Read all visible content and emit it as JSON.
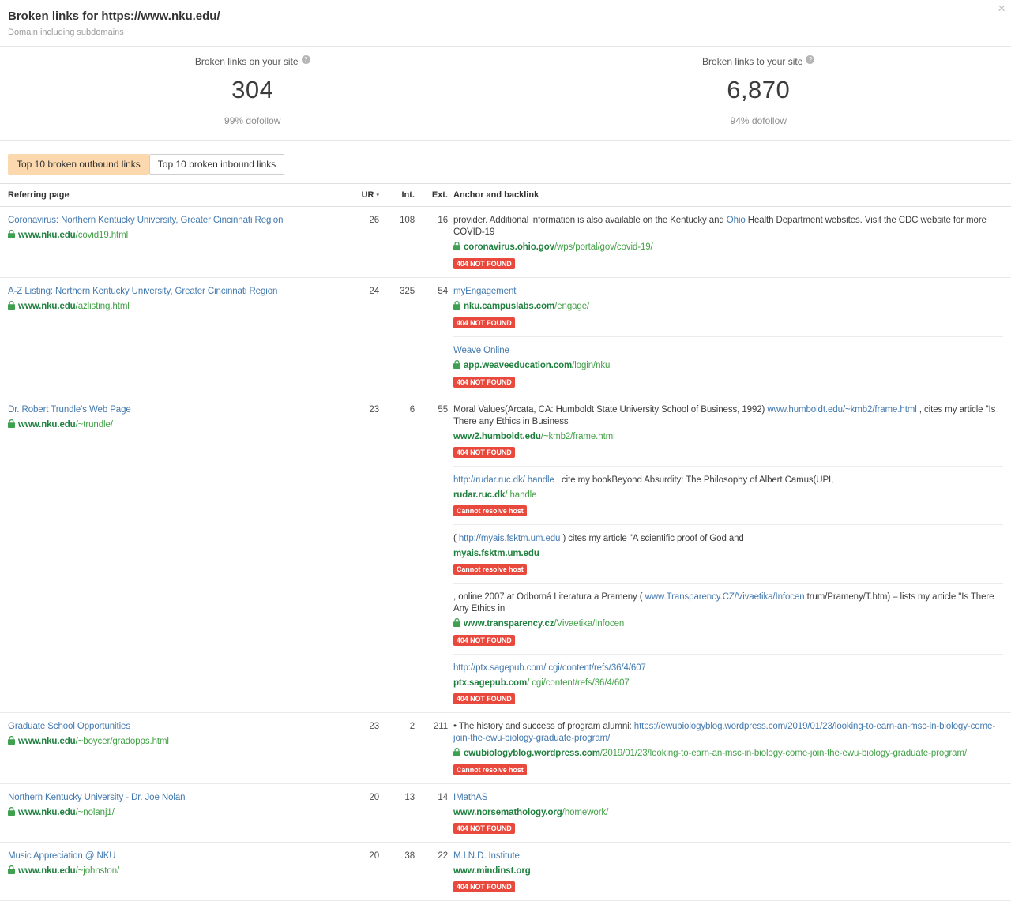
{
  "colors": {
    "link_blue": "#4379ae",
    "domain_green": "#20813f",
    "path_green": "#43a047",
    "badge_red": "#e8493c",
    "active_tab_bg": "#fbd8ad"
  },
  "header": {
    "title": "Broken links for https://www.nku.edu/",
    "subtitle": "Domain including subdomains",
    "close_icon": "×",
    "help_icon": "?"
  },
  "stats": [
    {
      "label": "Broken links on your site",
      "value": "304",
      "sub": "99% dofollow"
    },
    {
      "label": "Broken links to your site",
      "value": "6,870",
      "sub": "94% dofollow"
    }
  ],
  "tabs": [
    {
      "label": "Top 10 broken outbound links",
      "active": true
    },
    {
      "label": "Top 10 broken inbound links",
      "active": false
    }
  ],
  "table": {
    "sort_icon": "▾",
    "columns": {
      "referring": "Referring page",
      "ur": "UR",
      "int": "Int.",
      "ext": "Ext.",
      "anchor": "Anchor and backlink"
    },
    "rows": [
      {
        "title": "Coronavirus: Northern Kentucky University, Greater Cincinnati Region",
        "lock": true,
        "domain": "www.nku.edu",
        "path": "/covid19.html",
        "ur": "26",
        "int": "108",
        "ext": "16",
        "backlinks": [
          {
            "anchor": [
              {
                "t": "provider. Additional information is also available on the Kentucky and "
              },
              {
                "t": "Ohio",
                "link": true
              },
              {
                "t": " Health Department websites. Visit the CDC website for more COVID-19"
              }
            ],
            "lock": true,
            "domain": "coronavirus.ohio.gov",
            "path": "/wps/portal/gov/covid-19/",
            "badge": "404 NOT FOUND"
          }
        ]
      },
      {
        "title": "A-Z Listing: Northern Kentucky University, Greater Cincinnati Region",
        "lock": true,
        "domain": "www.nku.edu",
        "path": "/azlisting.html",
        "ur": "24",
        "int": "325",
        "ext": "54",
        "backlinks": [
          {
            "anchor": [
              {
                "t": "myEngagement",
                "link": true
              }
            ],
            "lock": true,
            "domain": "nku.campuslabs.com",
            "path": "/engage/",
            "badge": "404 NOT FOUND"
          },
          {
            "anchor": [
              {
                "t": "Weave Online",
                "link": true
              }
            ],
            "lock": true,
            "domain": "app.weaveeducation.com",
            "path": "/login/nku",
            "badge": "404 NOT FOUND"
          }
        ]
      },
      {
        "title": "Dr. Robert Trundle's Web Page",
        "lock": true,
        "domain": "www.nku.edu",
        "path": "/~trundle/",
        "ur": "23",
        "int": "6",
        "ext": "55",
        "backlinks": [
          {
            "anchor": [
              {
                "t": "Moral Values(Arcata, CA: Humboldt State University School of Business, 1992) "
              },
              {
                "t": "www.humboldt.edu/~kmb2/frame.html",
                "link": true
              },
              {
                "t": " , cites my article \"Is There any Ethics in Business"
              }
            ],
            "lock": false,
            "domain": "www2.humboldt.edu",
            "path": "/~kmb2/frame.html",
            "badge": "404 NOT FOUND"
          },
          {
            "anchor": [
              {
                "t": "http://rudar.ruc.dk/ handle",
                "link": true
              },
              {
                "t": " , cite my bookBeyond Absurdity: The Philosophy of Albert Camus(UPI,"
              }
            ],
            "lock": false,
            "domain": "rudar.ruc.dk",
            "path": "/ handle",
            "badge": "Cannot resolve host"
          },
          {
            "anchor": [
              {
                "t": "( "
              },
              {
                "t": "http://myais.fsktm.um.edu",
                "link": true
              },
              {
                "t": " ) cites my article \"A scientific proof of God and"
              }
            ],
            "lock": false,
            "domain": "myais.fsktm.um.edu",
            "path": "",
            "badge": "Cannot resolve host"
          },
          {
            "anchor": [
              {
                "t": ", online 2007 at Odborná Literatura a Prameny ( "
              },
              {
                "t": "www.Transparency.CZ/Vivaetika/Infocen",
                "link": true
              },
              {
                "t": " trum/Prameny/T.htm) – lists my article \"Is There Any Ethics in"
              }
            ],
            "lock": true,
            "domain": "www.transparency.cz",
            "path": "/Vivaetika/Infocen",
            "badge": "404 NOT FOUND"
          },
          {
            "anchor": [
              {
                "t": "http://ptx.sagepub.com/ cgi/content/refs/36/4/607",
                "link": true
              }
            ],
            "lock": false,
            "domain": "ptx.sagepub.com",
            "path": "/ cgi/content/refs/36/4/607",
            "badge": "404 NOT FOUND"
          }
        ]
      },
      {
        "title": "Graduate School Opportunities",
        "lock": true,
        "domain": "www.nku.edu",
        "path": "/~boycer/gradopps.html",
        "ur": "23",
        "int": "2",
        "ext": "211",
        "backlinks": [
          {
            "anchor": [
              {
                "t": "• The history and success of program alumni: "
              },
              {
                "t": "https://ewubiologyblog.wordpress.com/2019/01/23/looking-to-earn-an-msc-in-biology-come-join-the-ewu-biology-graduate-program/",
                "link": true
              }
            ],
            "lock": true,
            "domain": "ewubiologyblog.wordpress.com",
            "path": "/2019/01/23/looking-to-earn-an-msc-in-biology-come-join-the-ewu-biology-graduate-program/",
            "badge": "Cannot resolve host"
          }
        ]
      },
      {
        "title": "Northern Kentucky University - Dr. Joe Nolan",
        "lock": true,
        "domain": "www.nku.edu",
        "path": "/~nolanj1/",
        "ur": "20",
        "int": "13",
        "ext": "14",
        "backlinks": [
          {
            "anchor": [
              {
                "t": "IMathAS",
                "link": true
              }
            ],
            "lock": false,
            "domain": "www.norsemathology.org",
            "path": "/homework/",
            "badge": "404 NOT FOUND"
          }
        ]
      },
      {
        "title": "Music Appreciation @ NKU",
        "lock": true,
        "domain": "www.nku.edu",
        "path": "/~johnston/",
        "ur": "20",
        "int": "38",
        "ext": "22",
        "backlinks": [
          {
            "anchor": [
              {
                "t": "M.I.N.D. Institute",
                "link": true
              }
            ],
            "lock": false,
            "domain": "www.mindinst.org",
            "path": "",
            "badge": "404 NOT FOUND"
          }
        ]
      }
    ]
  }
}
